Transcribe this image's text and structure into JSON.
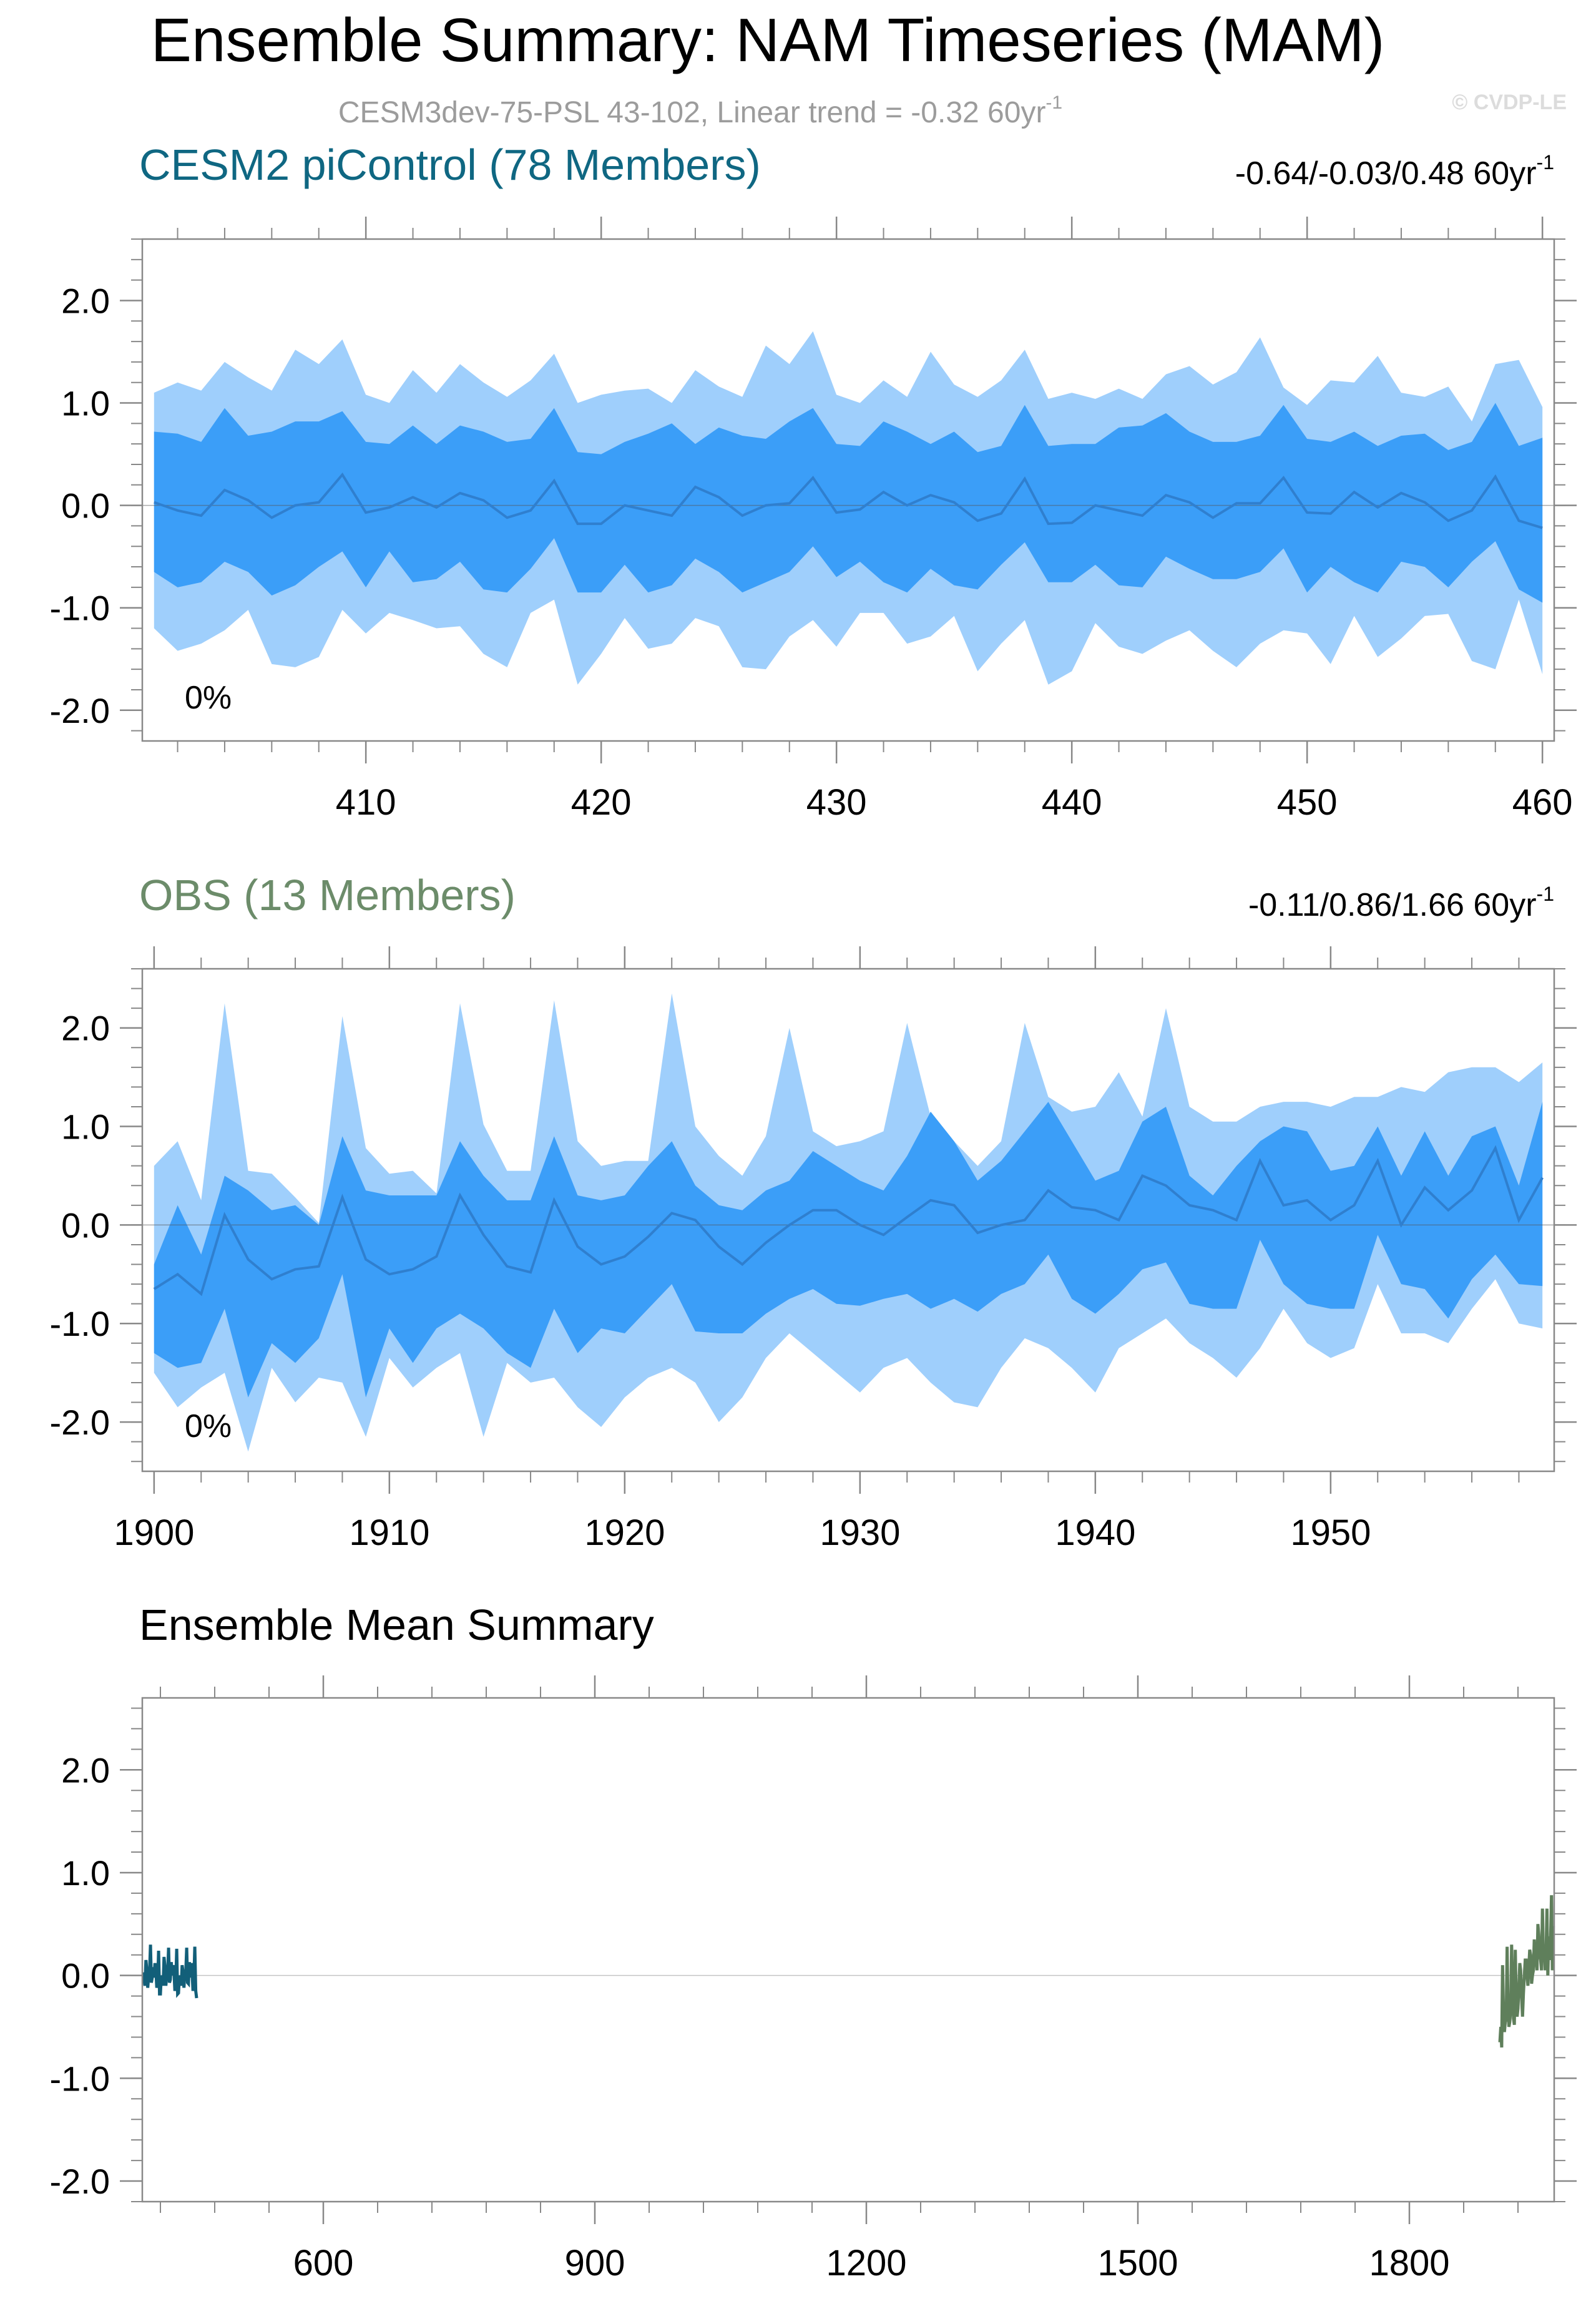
{
  "figure": {
    "title": "Ensemble Summary: NAM Timeseries (MAM)",
    "subtitle": "CESM3dev-75-PSL 43-102, Linear trend = -0.32 60yr",
    "subtitle_sup": "-1",
    "watermark": "© CVDP-LE"
  },
  "colors": {
    "outer_band": "#9fcffc",
    "inner_band": "#3b9ef8",
    "mean_line": "#2f7fcf",
    "cesm2_title": "#0f6782",
    "obs_title": "#6c8c6a",
    "cesm2_mean_line": "#125f79",
    "obs_mean_line": "#5f7f5b",
    "axis": "#000000"
  },
  "chart_data": [
    {
      "type": "area",
      "name_text": "CESM2 piControl (78 Members)",
      "trend_text": "-0.64/-0.03/0.48 60yr",
      "trend_sup": "-1",
      "percent_label": "0%",
      "xlim": [
        400.5,
        460.5
      ],
      "ylim": [
        -2.3,
        2.6
      ],
      "xticks": [
        410,
        420,
        430,
        440,
        450,
        460
      ],
      "xtick_labels": [
        "410",
        "420",
        "430",
        "440",
        "450",
        "460"
      ],
      "yticks": [
        -2.0,
        -1.0,
        0.0,
        1.0,
        2.0
      ],
      "ytick_labels": [
        "-2.0",
        "-1.0",
        "0.0",
        "1.0",
        "2.0"
      ],
      "x_start": 401,
      "mean": [
        0.03,
        -0.05,
        -0.1,
        0.15,
        0.05,
        -0.12,
        0.0,
        0.03,
        0.3,
        -0.07,
        -0.02,
        0.08,
        -0.02,
        0.12,
        0.05,
        -0.12,
        -0.05,
        0.24,
        -0.18,
        -0.18,
        0.0,
        -0.05,
        -0.1,
        0.18,
        0.08,
        -0.1,
        0.0,
        0.02,
        0.27,
        -0.07,
        -0.04,
        0.13,
        0.0,
        0.1,
        0.03,
        -0.15,
        -0.08,
        0.26,
        -0.18,
        -0.17,
        0.0,
        -0.05,
        -0.1,
        0.1,
        0.03,
        -0.12,
        0.02,
        0.02,
        0.27,
        -0.07,
        -0.08,
        0.13,
        -0.02,
        0.12,
        0.03,
        -0.15,
        -0.05,
        0.28,
        -0.15,
        -0.22
      ],
      "inner_upper": [
        0.72,
        0.7,
        0.62,
        0.95,
        0.68,
        0.72,
        0.82,
        0.82,
        0.92,
        0.62,
        0.6,
        0.78,
        0.6,
        0.78,
        0.72,
        0.62,
        0.65,
        0.95,
        0.52,
        0.5,
        0.62,
        0.7,
        0.8,
        0.6,
        0.76,
        0.68,
        0.65,
        0.82,
        0.95,
        0.6,
        0.58,
        0.82,
        0.72,
        0.6,
        0.72,
        0.52,
        0.58,
        0.98,
        0.58,
        0.6,
        0.6,
        0.76,
        0.78,
        0.9,
        0.72,
        0.62,
        0.62,
        0.68,
        0.98,
        0.65,
        0.62,
        0.72,
        0.58,
        0.68,
        0.7,
        0.54,
        0.62,
        1.0,
        0.58,
        0.66
      ],
      "inner_lower": [
        -0.65,
        -0.8,
        -0.75,
        -0.55,
        -0.65,
        -0.88,
        -0.78,
        -0.6,
        -0.45,
        -0.8,
        -0.45,
        -0.75,
        -0.72,
        -0.55,
        -0.82,
        -0.85,
        -0.62,
        -0.32,
        -0.85,
        -0.85,
        -0.58,
        -0.85,
        -0.78,
        -0.52,
        -0.65,
        -0.85,
        -0.75,
        -0.65,
        -0.4,
        -0.7,
        -0.55,
        -0.75,
        -0.85,
        -0.62,
        -0.78,
        -0.82,
        -0.58,
        -0.36,
        -0.75,
        -0.75,
        -0.58,
        -0.78,
        -0.8,
        -0.5,
        -0.62,
        -0.72,
        -0.72,
        -0.65,
        -0.42,
        -0.85,
        -0.6,
        -0.75,
        -0.85,
        -0.55,
        -0.6,
        -0.8,
        -0.55,
        -0.35,
        -0.82,
        -0.95
      ],
      "outer_upper": [
        1.1,
        1.2,
        1.12,
        1.4,
        1.25,
        1.12,
        1.52,
        1.38,
        1.62,
        1.08,
        1.0,
        1.32,
        1.1,
        1.38,
        1.2,
        1.06,
        1.22,
        1.48,
        1.0,
        1.08,
        1.12,
        1.14,
        1.0,
        1.32,
        1.16,
        1.06,
        1.56,
        1.38,
        1.7,
        1.08,
        1.0,
        1.22,
        1.06,
        1.5,
        1.18,
        1.06,
        1.22,
        1.52,
        1.04,
        1.1,
        1.04,
        1.14,
        1.04,
        1.28,
        1.36,
        1.18,
        1.3,
        1.64,
        1.15,
        0.98,
        1.22,
        1.2,
        1.46,
        1.1,
        1.06,
        1.16,
        0.82,
        1.38,
        1.42,
        0.96
      ],
      "outer_lower": [
        -1.2,
        -1.42,
        -1.35,
        -1.22,
        -1.02,
        -1.55,
        -1.58,
        -1.48,
        -1.02,
        -1.25,
        -1.05,
        -1.12,
        -1.2,
        -1.18,
        -1.45,
        -1.58,
        -1.05,
        -0.92,
        -1.75,
        -1.45,
        -1.1,
        -1.4,
        -1.35,
        -1.1,
        -1.18,
        -1.58,
        -1.6,
        -1.28,
        -1.12,
        -1.38,
        -1.05,
        -1.05,
        -1.35,
        -1.28,
        -1.08,
        -1.62,
        -1.35,
        -1.12,
        -1.75,
        -1.62,
        -1.15,
        -1.38,
        -1.45,
        -1.32,
        -1.22,
        -1.42,
        -1.58,
        -1.35,
        -1.22,
        -1.25,
        -1.55,
        -1.08,
        -1.48,
        -1.3,
        -1.08,
        -1.06,
        -1.52,
        -1.6,
        -0.92,
        -1.65
      ]
    },
    {
      "type": "area",
      "name_text": "OBS (13 Members)",
      "trend_text": "-0.11/0.86/1.66 60yr",
      "trend_sup": "-1",
      "percent_label": "0%",
      "xlim": [
        1899.5,
        1959.5
      ],
      "ylim": [
        -2.5,
        2.6
      ],
      "xticks": [
        1900,
        1910,
        1920,
        1930,
        1940,
        1950
      ],
      "xtick_labels": [
        "1900",
        "1910",
        "1920",
        "1930",
        "1940",
        "1950"
      ],
      "yticks": [
        -2.0,
        -1.0,
        0.0,
        1.0,
        2.0
      ],
      "ytick_labels": [
        "-2.0",
        "-1.0",
        "0.0",
        "1.0",
        "2.0"
      ],
      "x_start": 1900,
      "mean": [
        -0.65,
        -0.5,
        -0.7,
        0.1,
        -0.35,
        -0.55,
        -0.45,
        -0.42,
        0.28,
        -0.35,
        -0.5,
        -0.45,
        -0.32,
        0.3,
        -0.1,
        -0.42,
        -0.48,
        0.25,
        -0.22,
        -0.4,
        -0.32,
        -0.12,
        0.12,
        0.05,
        -0.22,
        -0.4,
        -0.18,
        0.0,
        0.15,
        0.15,
        0.0,
        -0.1,
        0.08,
        0.25,
        0.2,
        -0.08,
        0.0,
        0.05,
        0.35,
        0.18,
        0.15,
        0.05,
        0.5,
        0.4,
        0.2,
        0.15,
        0.05,
        0.65,
        0.2,
        0.25,
        0.05,
        0.2,
        0.65,
        0.0,
        0.38,
        0.15,
        0.35,
        0.78,
        0.05,
        0.48
      ],
      "inner_upper": [
        -0.4,
        0.2,
        -0.3,
        0.5,
        0.35,
        0.15,
        0.2,
        0.0,
        0.9,
        0.35,
        0.3,
        0.3,
        0.3,
        0.85,
        0.5,
        0.25,
        0.25,
        0.9,
        0.3,
        0.25,
        0.3,
        0.6,
        0.85,
        0.4,
        0.2,
        0.15,
        0.35,
        0.45,
        0.75,
        0.6,
        0.45,
        0.35,
        0.7,
        1.15,
        0.85,
        0.45,
        0.65,
        0.95,
        1.25,
        0.85,
        0.45,
        0.55,
        1.05,
        1.2,
        0.5,
        0.3,
        0.6,
        0.85,
        1.0,
        0.95,
        0.55,
        0.6,
        1.0,
        0.5,
        0.95,
        0.5,
        0.9,
        1.0,
        0.4,
        1.25
      ],
      "inner_lower": [
        -1.3,
        -1.45,
        -1.4,
        -0.85,
        -1.75,
        -1.2,
        -1.4,
        -1.15,
        -0.5,
        -1.75,
        -1.05,
        -1.4,
        -1.05,
        -0.9,
        -1.05,
        -1.3,
        -1.45,
        -0.85,
        -1.3,
        -1.05,
        -1.1,
        -0.85,
        -0.6,
        -1.08,
        -1.1,
        -1.1,
        -0.9,
        -0.75,
        -0.65,
        -0.8,
        -0.82,
        -0.75,
        -0.7,
        -0.85,
        -0.75,
        -0.88,
        -0.7,
        -0.6,
        -0.3,
        -0.75,
        -0.9,
        -0.7,
        -0.45,
        -0.38,
        -0.8,
        -0.85,
        -0.85,
        -0.15,
        -0.6,
        -0.8,
        -0.85,
        -0.85,
        -0.1,
        -0.6,
        -0.65,
        -0.95,
        -0.55,
        -0.3,
        -0.6,
        -0.62
      ],
      "outer_upper": [
        0.6,
        0.85,
        0.25,
        2.25,
        0.55,
        0.52,
        0.28,
        0.02,
        2.12,
        0.78,
        0.52,
        0.55,
        0.32,
        2.25,
        1.02,
        0.55,
        0.55,
        2.28,
        0.85,
        0.6,
        0.65,
        0.65,
        2.35,
        1.0,
        0.7,
        0.5,
        0.9,
        2.0,
        0.95,
        0.8,
        0.85,
        0.95,
        2.05,
        1.1,
        0.85,
        0.6,
        0.85,
        2.05,
        1.3,
        1.15,
        1.2,
        1.55,
        1.1,
        2.2,
        1.2,
        1.05,
        1.05,
        1.2,
        1.25,
        1.25,
        1.2,
        1.3,
        1.3,
        1.4,
        1.35,
        1.55,
        1.6,
        1.6,
        1.45,
        1.65
      ],
      "outer_lower": [
        -1.5,
        -1.85,
        -1.65,
        -1.5,
        -2.3,
        -1.45,
        -1.8,
        -1.55,
        -1.6,
        -2.15,
        -1.35,
        -1.65,
        -1.45,
        -1.3,
        -2.15,
        -1.4,
        -1.6,
        -1.55,
        -1.85,
        -2.05,
        -1.75,
        -1.55,
        -1.45,
        -1.6,
        -2.0,
        -1.75,
        -1.35,
        -1.1,
        -1.3,
        -1.5,
        -1.7,
        -1.45,
        -1.35,
        -1.6,
        -1.8,
        -1.85,
        -1.45,
        -1.15,
        -1.25,
        -1.45,
        -1.7,
        -1.25,
        -1.1,
        -0.95,
        -1.2,
        -1.35,
        -1.55,
        -1.25,
        -0.85,
        -1.2,
        -1.35,
        -1.25,
        -0.6,
        -1.1,
        -1.1,
        -1.2,
        -0.85,
        -0.55,
        -1.0,
        -1.05
      ]
    },
    {
      "type": "line",
      "name_text": "Ensemble Mean Summary",
      "xlim": [
        400,
        1960
      ],
      "ylim": [
        -2.2,
        2.7
      ],
      "xticks": [
        600,
        900,
        1200,
        1500,
        1800
      ],
      "xtick_labels": [
        "600",
        "900",
        "1200",
        "1500",
        "1800"
      ],
      "yticks": [
        -2.0,
        -1.0,
        0.0,
        1.0,
        2.0
      ],
      "ytick_labels": [
        "-2.0",
        "-1.0",
        "0.0",
        "1.0",
        "2.0"
      ],
      "series": [
        {
          "color_key": "cesm2_mean_line",
          "source": 0
        },
        {
          "color_key": "obs_mean_line",
          "source": 1
        }
      ]
    }
  ]
}
